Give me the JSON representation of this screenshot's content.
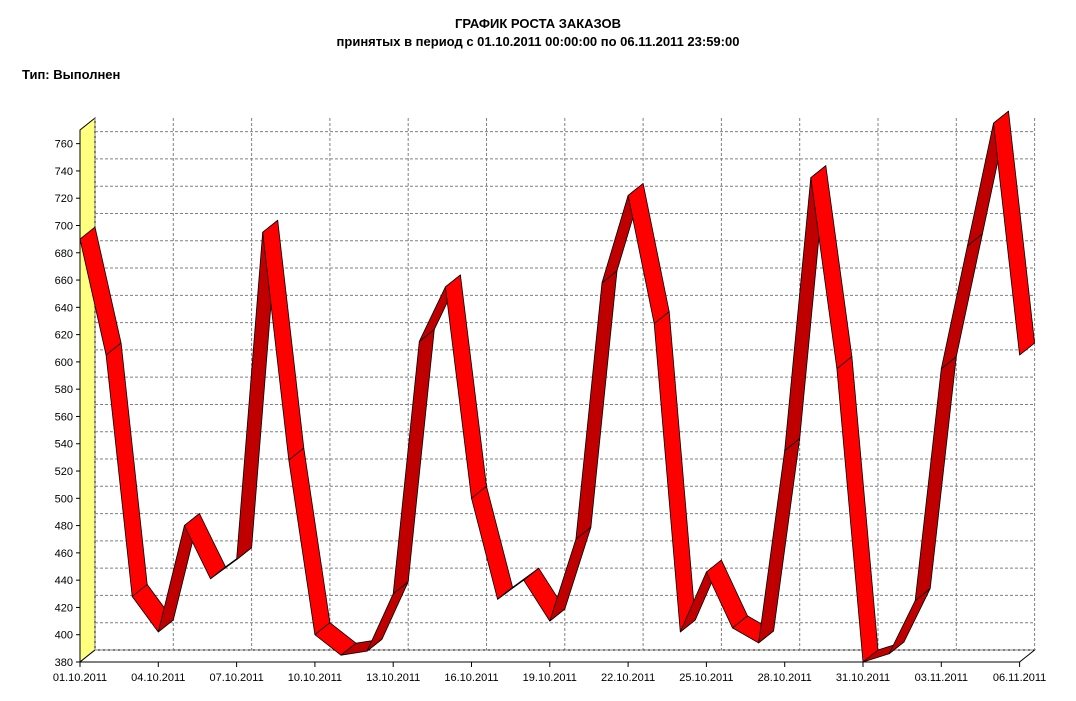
{
  "header": {
    "title": "ГРАФИК РОСТА ЗАКАЗОВ",
    "subtitle": "принятых в период с 01.10.2011 00:00:00 по 06.11.2011 23:59:00",
    "type_label": "Тип: Выполнен"
  },
  "colors": {
    "ribbon_front": "#ff0000",
    "ribbon_shade": "#c00000",
    "ribbon_outline": "#000000",
    "wall": "#ffff80",
    "grid": "#808080",
    "axis": "#000000"
  },
  "chart_data": {
    "type": "line",
    "style": "3d-ribbon",
    "title": "ГРАФИК РОСТА ЗАКАЗОВ",
    "subtitle": "принятых в период с 01.10.2011 00:00:00 по 06.11.2011 23:59:00",
    "xlabel": "",
    "ylabel": "",
    "ylim": [
      380,
      770
    ],
    "yticks": [
      380,
      400,
      420,
      440,
      460,
      480,
      500,
      520,
      540,
      560,
      580,
      600,
      620,
      640,
      660,
      680,
      700,
      720,
      740,
      760
    ],
    "grid": true,
    "legend": "none",
    "x_tick_labels": [
      "01.10.2011",
      "04.10.2011",
      "07.10.2011",
      "10.10.2011",
      "13.10.2011",
      "16.10.2011",
      "19.10.2011",
      "22.10.2011",
      "25.10.2011",
      "28.10.2011",
      "31.10.2011",
      "03.11.2011",
      "06.11.2011"
    ],
    "x": [
      "01.10.2011",
      "02.10.2011",
      "03.10.2011",
      "04.10.2011",
      "05.10.2011",
      "06.10.2011",
      "07.10.2011",
      "08.10.2011",
      "09.10.2011",
      "10.10.2011",
      "11.10.2011",
      "12.10.2011",
      "13.10.2011",
      "14.10.2011",
      "15.10.2011",
      "16.10.2011",
      "17.10.2011",
      "18.10.2011",
      "19.10.2011",
      "20.10.2011",
      "21.10.2011",
      "22.10.2011",
      "23.10.2011",
      "24.10.2011",
      "25.10.2011",
      "26.10.2011",
      "27.10.2011",
      "28.10.2011",
      "29.10.2011",
      "30.10.2011",
      "31.10.2011",
      "01.11.2011",
      "02.11.2011",
      "03.11.2011",
      "04.11.2011",
      "05.11.2011",
      "06.11.2011"
    ],
    "series": [
      {
        "values": [
          690,
          605,
          428,
          402,
          480,
          441,
          455,
          695,
          528,
          400,
          385,
          388,
          430,
          615,
          655,
          500,
          426,
          440,
          410,
          470,
          658,
          722,
          628,
          402,
          446,
          405,
          394,
          535,
          735,
          595,
          380,
          386,
          425,
          595,
          685,
          775,
          605
        ]
      }
    ]
  }
}
